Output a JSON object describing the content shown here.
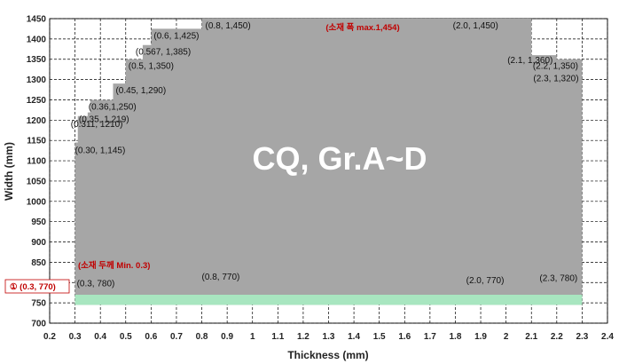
{
  "chart_data": {
    "type": "area",
    "xlabel": "Thickness (mm)",
    "ylabel": "Width (mm)",
    "xlim": [
      0.2,
      2.4
    ],
    "ylim": [
      700,
      1450
    ],
    "x_ticks": [
      "0.2",
      "0.3",
      "0.4",
      "0.5",
      "0.6",
      "0.7",
      "0.8",
      "0.9",
      "1",
      "1.1",
      "1.2",
      "1.3",
      "1.4",
      "1.5",
      "1.6",
      "1.7",
      "1.8",
      "1.9",
      "2",
      "2.1",
      "2.2",
      "2.3",
      "2.4"
    ],
    "y_ticks": [
      "700",
      "750",
      "800",
      "850",
      "900",
      "950",
      "1000",
      "1050",
      "1100",
      "1150",
      "1200",
      "1250",
      "1300",
      "1350",
      "1400",
      "1450"
    ],
    "grid": true,
    "series": [
      {
        "max_width_profile": [
          {
            "x": 0.3,
            "y": 1145
          },
          {
            "x": 0.311,
            "y": 1210
          },
          {
            "x": 0.35,
            "y": 1219
          },
          {
            "x": 0.36,
            "y": 1250
          },
          {
            "x": 0.45,
            "y": 1290
          },
          {
            "x": 0.5,
            "y": 1350
          },
          {
            "x": 0.567,
            "y": 1385
          },
          {
            "x": 0.6,
            "y": 1425
          },
          {
            "x": 0.8,
            "y": 1450
          },
          {
            "x": 2.0,
            "y": 1450
          },
          {
            "x": 2.1,
            "y": 1360
          },
          {
            "x": 2.2,
            "y": 1350
          },
          {
            "x": 2.3,
            "y": 1320
          }
        ],
        "min_width_profile": [
          {
            "x": 0.3,
            "y": 780
          },
          {
            "x": 0.3,
            "y": 770
          },
          {
            "x": 0.8,
            "y": 770
          },
          {
            "x": 2.0,
            "y": 770
          },
          {
            "x": 2.3,
            "y": 780
          }
        ]
      }
    ],
    "point_labels": [
      {
        "text": "(0.30, 1,145)",
        "x": 0.3,
        "y": 1145
      },
      {
        "text": "(0.311, 1210)",
        "x": 0.311,
        "y": 1210
      },
      {
        "text": "(0.35, 1,219)",
        "x": 0.35,
        "y": 1219
      },
      {
        "text": "(0.36,1,250)",
        "x": 0.36,
        "y": 1250
      },
      {
        "text": "(0.45, 1,290)",
        "x": 0.45,
        "y": 1290
      },
      {
        "text": "(0.5, 1,350)",
        "x": 0.5,
        "y": 1350
      },
      {
        "text": "(0.567, 1,385)",
        "x": 0.567,
        "y": 1385
      },
      {
        "text": "(0.6, 1,425)",
        "x": 0.6,
        "y": 1425
      },
      {
        "text": "(0.8, 1,450)",
        "x": 0.8,
        "y": 1450
      },
      {
        "text": "(2.0, 1,450)",
        "x": 2.0,
        "y": 1450
      },
      {
        "text": "(2.1, 1,360)",
        "x": 2.1,
        "y": 1360
      },
      {
        "text": "(2.2, 1,350)",
        "x": 2.2,
        "y": 1350
      },
      {
        "text": "(2.3, 1,320)",
        "x": 2.3,
        "y": 1320
      },
      {
        "text": "(0.3, 780)",
        "x": 0.3,
        "y": 780
      },
      {
        "text": "(0.8, 770)",
        "x": 0.8,
        "y": 770
      },
      {
        "text": "(2.0, 770)",
        "x": 2.0,
        "y": 770
      },
      {
        "text": "(2.3, 780)",
        "x": 2.3,
        "y": 780
      }
    ],
    "annotations": {
      "max_width_note": "(소재 폭 max.1,454)",
      "min_thickness_note": "(소재 두께 Min. 0.3)",
      "side_note": "① (0.3, 770)",
      "center_text": "CQ, Gr.A~D"
    },
    "colors": {
      "fill": "#a6a6a6",
      "band": "#a8e6c0",
      "annotation": "#c00000",
      "grid": "#000000"
    }
  }
}
